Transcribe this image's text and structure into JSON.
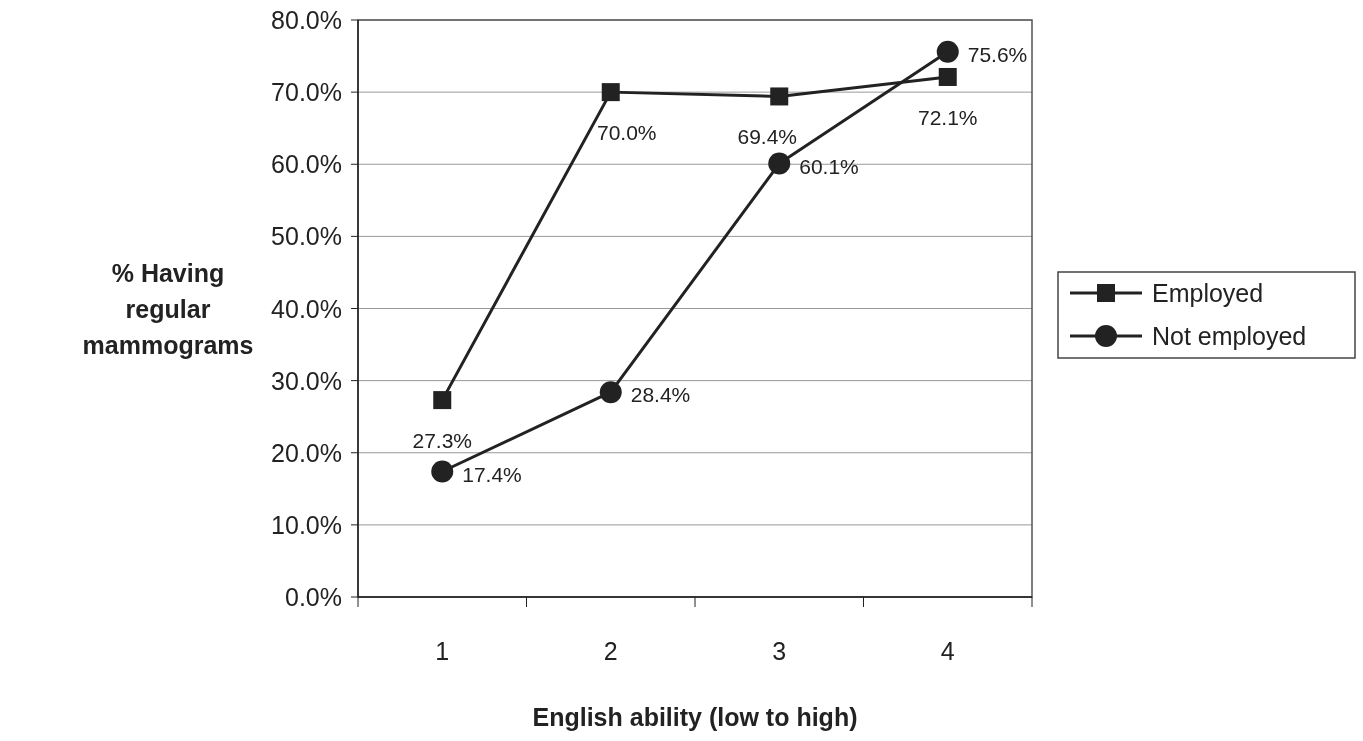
{
  "chart_data": {
    "type": "line",
    "xlabel": "English ability (low to high)",
    "ylabel": "% Having regular mammograms",
    "categories": [
      "1",
      "2",
      "3",
      "4"
    ],
    "ylim": [
      0,
      80
    ],
    "yticks": [
      {
        "value": 0,
        "label": "0.0%"
      },
      {
        "value": 10,
        "label": "10.0%"
      },
      {
        "value": 20,
        "label": "20.0%"
      },
      {
        "value": 30,
        "label": "30.0%"
      },
      {
        "value": 40,
        "label": "40.0%"
      },
      {
        "value": 50,
        "label": "50.0%"
      },
      {
        "value": 60,
        "label": "60.0%"
      },
      {
        "value": 70,
        "label": "70.0%"
      },
      {
        "value": 80,
        "label": "80.0%"
      }
    ],
    "grid": "y",
    "legend": "right",
    "line_style": "solid",
    "series": [
      {
        "name": "Employed",
        "color": "#222222",
        "marker": "square",
        "values": [
          27.3,
          70.0,
          69.4,
          72.1
        ],
        "value_labels": [
          "27.3%",
          "70.0%",
          "69.4%",
          "72.1%"
        ]
      },
      {
        "name": "Not employed",
        "color": "#222222",
        "marker": "circle",
        "values": [
          17.4,
          28.4,
          60.1,
          75.6
        ],
        "value_labels": [
          "17.4%",
          "28.4%",
          "60.1%",
          "75.6%"
        ]
      }
    ]
  }
}
